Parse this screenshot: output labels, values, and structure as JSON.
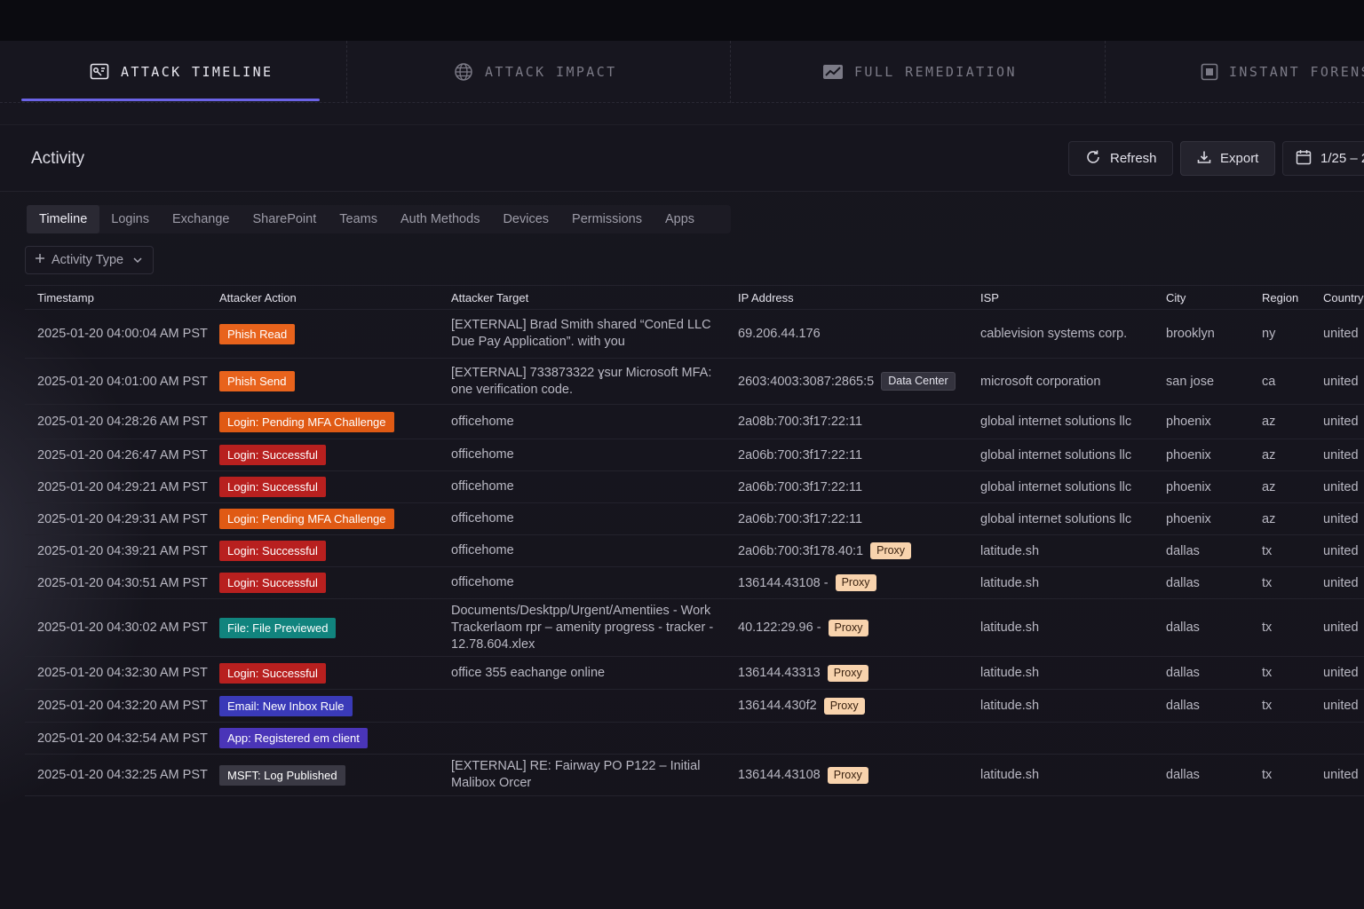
{
  "top_tabs": [
    {
      "label": "ATTACK TIMELINE",
      "icon": "timeline-icon",
      "active": true
    },
    {
      "label": "ATTACK IMPACT",
      "icon": "globe-icon",
      "active": false
    },
    {
      "label": "FULL REMEDIATION",
      "icon": "chart-check-icon",
      "active": false
    },
    {
      "label": "INSTANT FORENS",
      "icon": "scan-icon",
      "active": false
    }
  ],
  "header": {
    "title": "Activity",
    "refresh_label": "Refresh",
    "export_label": "Export",
    "date_label": "1/25 – 2"
  },
  "sub_tabs": [
    "Timeline",
    "Logins",
    "Exchange",
    "SharePoint",
    "Teams",
    "Auth Methods",
    "Devices",
    "Permissions",
    "Apps"
  ],
  "filter": {
    "label": "Activity Type"
  },
  "columns": [
    "Timestamp",
    "Attacker Action",
    "Attacker Target",
    "IP Address",
    "ISP",
    "City",
    "Region",
    "Country"
  ],
  "colors": {
    "accent": "#6b63e6",
    "phish": "#e8631c",
    "login_pending": "#e05a14",
    "login_success": "#b8201f",
    "file": "#11847e",
    "email": "#3a3ab8",
    "app": "#4a35b8",
    "msft": "#3a3944",
    "proxy_tag": "#f8d3ad"
  },
  "rows": [
    {
      "ts": "2025-01-20 04:00:04 AM PST",
      "action": "Phish Read",
      "kind": "phish",
      "target": "[EXTERNAL] Brad Smith shared “ConEd LLC Due Pay Application”. with you",
      "ip": "69.206.44.176",
      "tag": "",
      "isp": "cablevision systems corp.",
      "city": "brooklyn",
      "region": "ny",
      "country": "united"
    },
    {
      "ts": "2025-01-20 04:01:00 AM PST",
      "action": "Phish Send",
      "kind": "phish",
      "target": "[EXTERNAL] 733873322 ɣsur Microsoft MFA: one verification code.",
      "ip": "2603:4003:3087:2865:5",
      "tag": "Data Center",
      "isp": "microsoft corporation",
      "city": "san jose",
      "region": "ca",
      "country": "united"
    },
    {
      "ts": "2025-01-20 04:28:26 AM PST",
      "action": "Login: Pending MFA Challenge",
      "kind": "pending",
      "target": "officehome",
      "ip": "2a08b:700:3f17:22:11",
      "tag": "",
      "isp": "global internet solutions llc",
      "city": "phoenix",
      "region": "az",
      "country": "united"
    },
    {
      "ts": "2025-01-20 04:26:47 AM PST",
      "action": "Login: Successful",
      "kind": "success",
      "target": "officehome",
      "ip": "2a06b:700:3f17:22:11",
      "tag": "",
      "isp": "global internet solutions llc",
      "city": "phoenix",
      "region": "az",
      "country": "united"
    },
    {
      "ts": "2025-01-20 04:29:21 AM PST",
      "action": "Login: Successful",
      "kind": "success",
      "target": "officehome",
      "ip": "2a06b:700:3f17:22:11",
      "tag": "",
      "isp": "global internet solutions llc",
      "city": "phoenix",
      "region": "az",
      "country": "united"
    },
    {
      "ts": "2025-01-20 04:29:31 AM PST",
      "action": "Login: Pending MFA Challenge",
      "kind": "pending",
      "target": "officehome",
      "ip": "2a06b:700:3f17:22:11",
      "tag": "",
      "isp": "global internet solutions llc",
      "city": "phoenix",
      "region": "az",
      "country": "united"
    },
    {
      "ts": "2025-01-20 04:39:21 AM PST",
      "action": "Login: Successful",
      "kind": "success",
      "target": "officehome",
      "ip": "2a06b:700:3f178.40:1",
      "tag": "Proxy",
      "isp": "latitude.sh",
      "city": "dallas",
      "region": "tx",
      "country": "united"
    },
    {
      "ts": "2025-01-20 04:30:51 AM PST",
      "action": "Login: Successful",
      "kind": "success",
      "target": "officehome",
      "ip": "136144.43108 -",
      "tag": "Proxy",
      "isp": "latitude.sh",
      "city": "dallas",
      "region": "tx",
      "country": "united"
    },
    {
      "ts": "2025-01-20 04:30:02 AM PST",
      "action": "File: File Previewed",
      "kind": "file",
      "target": "Documents/Desktpp/Urgent/Amentiies - Work Trackerlaom rpr – amenity progress - tracker - 12.78.604.xlex",
      "ip": "40.122:29.96 -",
      "tag": "Proxy",
      "isp": "latitude.sh",
      "city": "dallas",
      "region": "tx",
      "country": "united"
    },
    {
      "ts": "2025-01-20 04:32:30 AM PST",
      "action": "Login: Successful",
      "kind": "success",
      "target": "office 355 eachange online",
      "ip": "136144.43313",
      "tag": "Proxy",
      "isp": "latitude.sh",
      "city": "dallas",
      "region": "tx",
      "country": "united"
    },
    {
      "ts": "2025-01-20 04:32:20 AM PST",
      "action": "Email: New Inbox Rule",
      "kind": "email",
      "target": "",
      "ip": "136144.430f2",
      "tag": "Proxy",
      "isp": "latitude.sh",
      "city": "dallas",
      "region": "tx",
      "country": "united"
    },
    {
      "ts": "2025-01-20 04:32:54 AM PST",
      "action": "App: Registered em client",
      "kind": "app",
      "target": "",
      "ip": "",
      "tag": "",
      "isp": "",
      "city": "",
      "region": "",
      "country": ""
    },
    {
      "ts": "2025-01-20 04:32:25 AM PST",
      "action": "MSFT: Log Published",
      "kind": "msft",
      "target": "[EXTERNAL] RE: Fairway PO P122 – Initial Malibox Orcer",
      "ip": "136144.43108",
      "tag": "Proxy",
      "isp": "latitude.sh",
      "city": "dallas",
      "region": "tx",
      "country": "united"
    }
  ]
}
